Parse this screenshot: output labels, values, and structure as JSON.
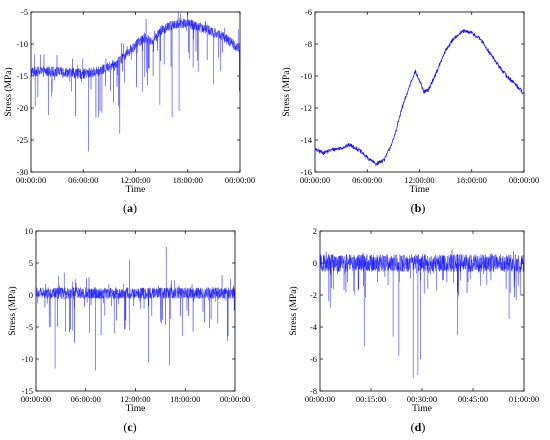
{
  "chart_data": [
    {
      "type": "line",
      "caption_open": "(",
      "caption_letter": "a",
      "caption_close": ")",
      "xlabel": "Time",
      "ylabel": "Stress (MPa)",
      "ylim": [
        -30,
        -5
      ],
      "yticks": [
        "-30",
        "-25",
        "-20",
        "-15",
        "-10",
        "-5"
      ],
      "xticks": [
        "00:00:00",
        "06:00:00",
        "12:00:00",
        "18:00:00",
        "00:00:00"
      ],
      "xlim": [
        0,
        24
      ],
      "line_color": "#1414ff",
      "trend_x": [
        0,
        2,
        4,
        6,
        8,
        10,
        11,
        12,
        13,
        14,
        15,
        16,
        17,
        18,
        20,
        22,
        24
      ],
      "trend_y": [
        -14.3,
        -14.3,
        -14.4,
        -14.7,
        -14.2,
        -12.8,
        -11.5,
        -10.2,
        -9.0,
        -9.6,
        -7.8,
        -7.2,
        -6.7,
        -6.8,
        -7.6,
        -8.8,
        -10.8
      ],
      "noise_amp": 0.8,
      "spike_down_max": 8,
      "spike_up_max": 3,
      "spikes": [
        [
          6.6,
          -26.8
        ],
        [
          10.2,
          -24.0
        ],
        [
          16.2,
          -21.5
        ],
        [
          17.0,
          -20.5
        ],
        [
          14.8,
          -19.5
        ],
        [
          16.9,
          0
        ]
      ]
    },
    {
      "type": "line",
      "caption_open": "(",
      "caption_letter": "b",
      "caption_close": ")",
      "xlabel": "Time",
      "ylabel": "Stress (MPa)",
      "ylim": [
        -16,
        -6
      ],
      "yticks": [
        "-16",
        "-14",
        "-12",
        "-10",
        "-8",
        "-6"
      ],
      "xticks": [
        "00:00:00",
        "06:00:00",
        "12:00:00",
        "18:00:00",
        "00:00:00"
      ],
      "xlim": [
        0,
        24
      ],
      "line_color": "#1414ff",
      "trend_x": [
        0,
        1,
        2,
        3,
        4,
        5,
        6,
        7,
        8,
        9,
        10,
        11,
        11.5,
        12,
        12.5,
        13,
        14,
        15,
        16,
        17,
        18,
        19,
        20,
        21,
        22,
        23,
        24
      ],
      "trend_y": [
        -14.6,
        -14.8,
        -14.6,
        -14.5,
        -14.3,
        -14.6,
        -15.1,
        -15.5,
        -15.2,
        -14.0,
        -12.0,
        -10.4,
        -9.7,
        -10.3,
        -11.0,
        -10.9,
        -9.7,
        -8.4,
        -7.6,
        -7.2,
        -7.3,
        -7.7,
        -8.5,
        -9.3,
        -10.0,
        -10.5,
        -11.1
      ],
      "noise_amp": 0.12,
      "spike_down_max": 0,
      "spike_up_max": 0,
      "spikes": []
    },
    {
      "type": "line",
      "caption_open": "(",
      "caption_letter": "c",
      "caption_close": ")",
      "xlabel": "Time",
      "ylabel": "Stress (MPa)",
      "ylim": [
        -15,
        10
      ],
      "yticks": [
        "-15",
        "-10",
        "-5",
        "0",
        "5",
        "10"
      ],
      "xticks": [
        "00:00:00",
        "06:00:00",
        "12:00:00",
        "18:00:00",
        "00:00:00"
      ],
      "xlim": [
        0,
        24
      ],
      "line_color": "#1414ff",
      "trend_x": [
        0,
        24
      ],
      "trend_y": [
        0.3,
        0.3
      ],
      "noise_amp": 0.9,
      "spike_down_max": 7,
      "spike_up_max": 2.5,
      "spikes": [
        [
          2.3,
          -11.5
        ],
        [
          7.2,
          -11.8
        ],
        [
          13.6,
          -10.5
        ],
        [
          16.1,
          -11.0
        ],
        [
          15.7,
          7.5
        ],
        [
          11.3,
          5.5
        ],
        [
          3.4,
          3.5
        ]
      ]
    },
    {
      "type": "line",
      "caption_open": "(",
      "caption_letter": "d",
      "caption_close": ")",
      "xlabel": "Time",
      "ylabel": "Stress (MPa)",
      "ylim": [
        -8,
        2
      ],
      "yticks": [
        "-8",
        "-6",
        "-4",
        "-2",
        "0",
        "2"
      ],
      "xticks": [
        "00:00:00",
        "00:15:00",
        "00:30:00",
        "00:45:00",
        "01:00:00"
      ],
      "xlim": [
        0,
        60
      ],
      "line_color": "#1414ff",
      "trend_x": [
        0,
        60
      ],
      "trend_y": [
        0.0,
        0.0
      ],
      "noise_amp": 0.55,
      "spike_down_max": 2.2,
      "spike_up_max": 0.4,
      "spikes": [
        [
          13.0,
          -5.2
        ],
        [
          23.2,
          -5.8
        ],
        [
          27.4,
          -7.2
        ],
        [
          28.8,
          -7.0
        ],
        [
          29.6,
          -6.0
        ],
        [
          21.5,
          -4.6
        ],
        [
          40.5,
          -4.5
        ],
        [
          55.6,
          -3.5
        ],
        [
          3.0,
          -2.8
        ]
      ]
    }
  ]
}
